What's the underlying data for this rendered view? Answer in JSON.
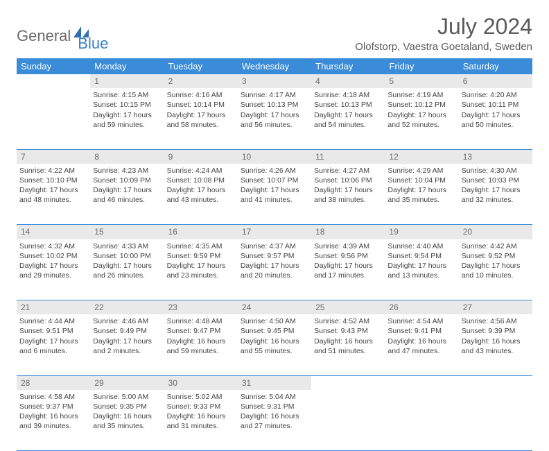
{
  "logo": {
    "text1": "General",
    "text2": "Blue"
  },
  "title": "July 2024",
  "location": "Olofstorp, Vaestra Goetaland, Sweden",
  "colors": {
    "header_bg": "#3a8bd8",
    "header_fg": "#ffffff",
    "daynum_bg": "#e9e9e9",
    "daynum_fg": "#6b6b6b",
    "text": "#444444",
    "border": "#3a8bd8",
    "logo_gray": "#6b6b6b",
    "logo_blue": "#3a7fc4"
  },
  "weekdays": [
    "Sunday",
    "Monday",
    "Tuesday",
    "Wednesday",
    "Thursday",
    "Friday",
    "Saturday"
  ],
  "weeks": [
    [
      null,
      {
        "n": "1",
        "sr": "4:15 AM",
        "ss": "10:15 PM",
        "dl": "17 hours and 59 minutes."
      },
      {
        "n": "2",
        "sr": "4:16 AM",
        "ss": "10:14 PM",
        "dl": "17 hours and 58 minutes."
      },
      {
        "n": "3",
        "sr": "4:17 AM",
        "ss": "10:13 PM",
        "dl": "17 hours and 56 minutes."
      },
      {
        "n": "4",
        "sr": "4:18 AM",
        "ss": "10:13 PM",
        "dl": "17 hours and 54 minutes."
      },
      {
        "n": "5",
        "sr": "4:19 AM",
        "ss": "10:12 PM",
        "dl": "17 hours and 52 minutes."
      },
      {
        "n": "6",
        "sr": "4:20 AM",
        "ss": "10:11 PM",
        "dl": "17 hours and 50 minutes."
      }
    ],
    [
      {
        "n": "7",
        "sr": "4:22 AM",
        "ss": "10:10 PM",
        "dl": "17 hours and 48 minutes."
      },
      {
        "n": "8",
        "sr": "4:23 AM",
        "ss": "10:09 PM",
        "dl": "17 hours and 46 minutes."
      },
      {
        "n": "9",
        "sr": "4:24 AM",
        "ss": "10:08 PM",
        "dl": "17 hours and 43 minutes."
      },
      {
        "n": "10",
        "sr": "4:26 AM",
        "ss": "10:07 PM",
        "dl": "17 hours and 41 minutes."
      },
      {
        "n": "11",
        "sr": "4:27 AM",
        "ss": "10:06 PM",
        "dl": "17 hours and 38 minutes."
      },
      {
        "n": "12",
        "sr": "4:29 AM",
        "ss": "10:04 PM",
        "dl": "17 hours and 35 minutes."
      },
      {
        "n": "13",
        "sr": "4:30 AM",
        "ss": "10:03 PM",
        "dl": "17 hours and 32 minutes."
      }
    ],
    [
      {
        "n": "14",
        "sr": "4:32 AM",
        "ss": "10:02 PM",
        "dl": "17 hours and 29 minutes."
      },
      {
        "n": "15",
        "sr": "4:33 AM",
        "ss": "10:00 PM",
        "dl": "17 hours and 26 minutes."
      },
      {
        "n": "16",
        "sr": "4:35 AM",
        "ss": "9:59 PM",
        "dl": "17 hours and 23 minutes."
      },
      {
        "n": "17",
        "sr": "4:37 AM",
        "ss": "9:57 PM",
        "dl": "17 hours and 20 minutes."
      },
      {
        "n": "18",
        "sr": "4:39 AM",
        "ss": "9:56 PM",
        "dl": "17 hours and 17 minutes."
      },
      {
        "n": "19",
        "sr": "4:40 AM",
        "ss": "9:54 PM",
        "dl": "17 hours and 13 minutes."
      },
      {
        "n": "20",
        "sr": "4:42 AM",
        "ss": "9:52 PM",
        "dl": "17 hours and 10 minutes."
      }
    ],
    [
      {
        "n": "21",
        "sr": "4:44 AM",
        "ss": "9:51 PM",
        "dl": "17 hours and 6 minutes."
      },
      {
        "n": "22",
        "sr": "4:46 AM",
        "ss": "9:49 PM",
        "dl": "17 hours and 2 minutes."
      },
      {
        "n": "23",
        "sr": "4:48 AM",
        "ss": "9:47 PM",
        "dl": "16 hours and 59 minutes."
      },
      {
        "n": "24",
        "sr": "4:50 AM",
        "ss": "9:45 PM",
        "dl": "16 hours and 55 minutes."
      },
      {
        "n": "25",
        "sr": "4:52 AM",
        "ss": "9:43 PM",
        "dl": "16 hours and 51 minutes."
      },
      {
        "n": "26",
        "sr": "4:54 AM",
        "ss": "9:41 PM",
        "dl": "16 hours and 47 minutes."
      },
      {
        "n": "27",
        "sr": "4:56 AM",
        "ss": "9:39 PM",
        "dl": "16 hours and 43 minutes."
      }
    ],
    [
      {
        "n": "28",
        "sr": "4:58 AM",
        "ss": "9:37 PM",
        "dl": "16 hours and 39 minutes."
      },
      {
        "n": "29",
        "sr": "5:00 AM",
        "ss": "9:35 PM",
        "dl": "16 hours and 35 minutes."
      },
      {
        "n": "30",
        "sr": "5:02 AM",
        "ss": "9:33 PM",
        "dl": "16 hours and 31 minutes."
      },
      {
        "n": "31",
        "sr": "5:04 AM",
        "ss": "9:31 PM",
        "dl": "16 hours and 27 minutes."
      },
      null,
      null,
      null
    ]
  ],
  "labels": {
    "sunrise": "Sunrise:",
    "sunset": "Sunset:",
    "daylight": "Daylight:"
  }
}
